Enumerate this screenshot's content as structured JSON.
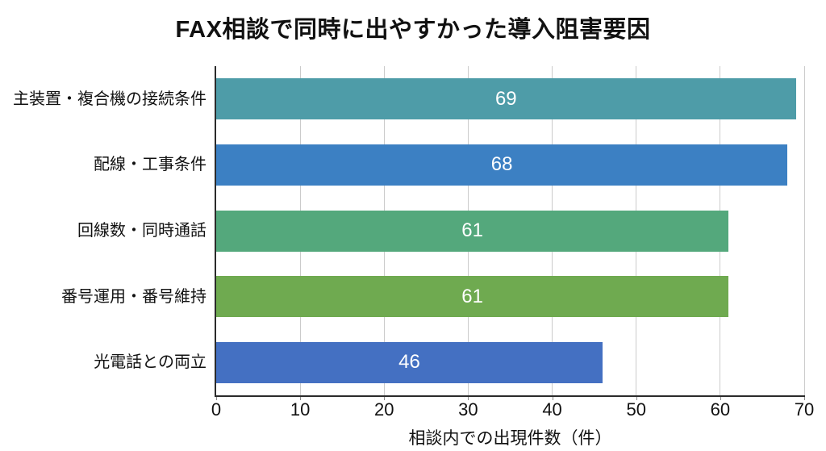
{
  "chart_data": {
    "type": "bar",
    "orientation": "horizontal",
    "title": "FAX相談で同時に出やすかった導入阻害要因",
    "xlabel": "相談内での出現件数（件）",
    "categories": [
      "主装置・複合機の接続条件",
      "配線・工事条件",
      "回線数・同時通話",
      "番号運用・番号維持",
      "光電話との両立"
    ],
    "values": [
      69,
      68,
      61,
      61,
      46
    ],
    "bar_colors": [
      "#4E9CA8",
      "#3C80C3",
      "#54A87C",
      "#6FAA50",
      "#4470C2"
    ],
    "value_label_color": "#ffffff",
    "xlim": [
      0,
      70
    ],
    "xticks": [
      0,
      10,
      20,
      30,
      40,
      50,
      60,
      70
    ],
    "grid": "vertical",
    "gridline_color": "#cbcbcb",
    "axis_color": "#2b2b2b",
    "legend": "none"
  }
}
